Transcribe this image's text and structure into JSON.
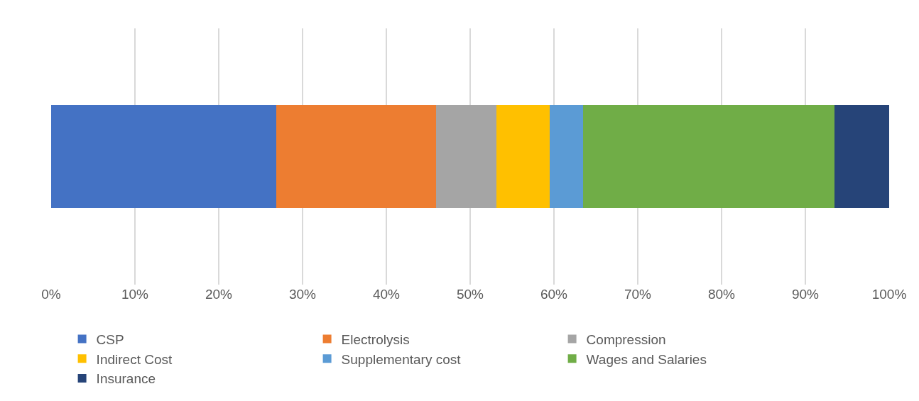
{
  "chart_data": {
    "type": "bar",
    "orientation": "horizontal",
    "stacked": true,
    "categories": [
      null
    ],
    "series": [
      {
        "name": "CSP",
        "color": "#4472c4",
        "values": [
          26.9
        ]
      },
      {
        "name": "Electrolysis",
        "color": "#ed7d31",
        "values": [
          19.0
        ]
      },
      {
        "name": "Compression",
        "color": "#a5a5a5",
        "values": [
          7.2
        ]
      },
      {
        "name": "Indirect Cost",
        "color": "#ffc000",
        "values": [
          6.4
        ]
      },
      {
        "name": "Supplementary cost",
        "color": "#5b9bd5",
        "values": [
          4.0
        ]
      },
      {
        "name": "Wages and Salaries",
        "color": "#70ad47",
        "values": [
          30.0
        ]
      },
      {
        "name": "Insurance",
        "color": "#264478",
        "values": [
          6.5
        ]
      }
    ],
    "xlim": [
      0,
      100
    ],
    "xticks": [
      {
        "value": 0,
        "label": "0%"
      },
      {
        "value": 10,
        "label": "10%"
      },
      {
        "value": 20,
        "label": "20%"
      },
      {
        "value": 30,
        "label": "30%"
      },
      {
        "value": 40,
        "label": "40%"
      },
      {
        "value": 50,
        "label": "50%"
      },
      {
        "value": 60,
        "label": "60%"
      },
      {
        "value": 70,
        "label": "70%"
      },
      {
        "value": 80,
        "label": "80%"
      },
      {
        "value": 90,
        "label": "90%"
      },
      {
        "value": 100,
        "label": "100%"
      }
    ],
    "grid": "x",
    "legend": "bottom",
    "tick_labels": "x"
  }
}
